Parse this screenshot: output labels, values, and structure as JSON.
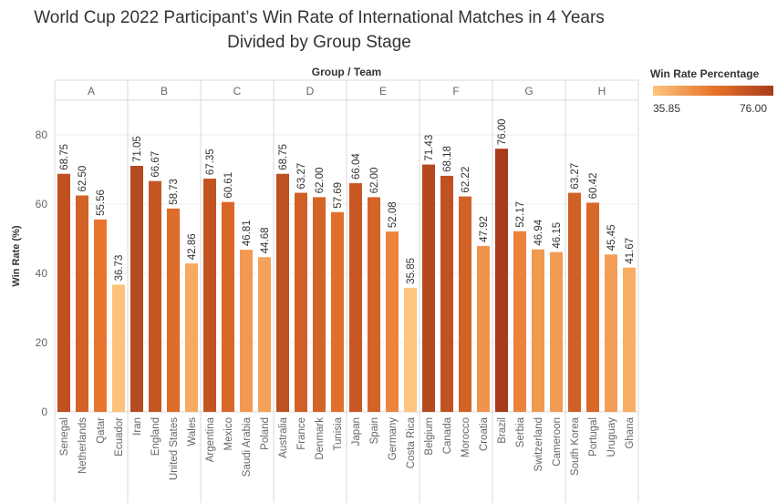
{
  "title": {
    "line1": "World Cup 2022 Participant’s Win Rate of International Matches in 4 Years",
    "line2": "Divided by Group Stage"
  },
  "legend": {
    "title": "Win Rate Percentage",
    "min_label": "35.85",
    "max_label": "76.00",
    "color_low": "#fdc57f",
    "color_mid": "#e8742b",
    "color_high": "#a63c1c"
  },
  "chart_data": {
    "type": "bar",
    "column_header": "Group  /  Team",
    "ylabel": "Win Rate (%)",
    "ylim": [
      0,
      90
    ],
    "yticks": [
      0,
      20,
      40,
      60,
      80
    ],
    "grid": true,
    "color_scale": {
      "min": 35.85,
      "max": 76.0
    },
    "groups": [
      {
        "name": "A",
        "teams": [
          "Senegal",
          "Netherlands",
          "Qatar",
          "Ecuador"
        ],
        "values": [
          68.75,
          62.5,
          55.56,
          36.73
        ]
      },
      {
        "name": "B",
        "teams": [
          "Iran",
          "England",
          "United States",
          "Wales"
        ],
        "values": [
          71.05,
          66.67,
          58.73,
          42.86
        ]
      },
      {
        "name": "C",
        "teams": [
          "Argentina",
          "Mexico",
          "Saudi Arabia",
          "Poland"
        ],
        "values": [
          67.35,
          60.61,
          46.81,
          44.68
        ]
      },
      {
        "name": "D",
        "teams": [
          "Australia",
          "France",
          "Denmark",
          "Tunisia"
        ],
        "values": [
          68.75,
          63.27,
          62.0,
          57.69
        ]
      },
      {
        "name": "E",
        "teams": [
          "Japan",
          "Spain",
          "Germany",
          "Costa Rica"
        ],
        "values": [
          66.04,
          62.0,
          52.08,
          35.85
        ]
      },
      {
        "name": "F",
        "teams": [
          "Belgium",
          "Canada",
          "Morocco",
          "Croatia"
        ],
        "values": [
          71.43,
          68.18,
          62.22,
          47.92
        ]
      },
      {
        "name": "G",
        "teams": [
          "Brazil",
          "Serbia",
          "Switzerland",
          "Cameroon"
        ],
        "values": [
          76.0,
          52.17,
          46.94,
          46.15
        ]
      },
      {
        "name": "H",
        "teams": [
          "South Korea",
          "Portugal",
          "Uruguay",
          "Ghana"
        ],
        "values": [
          63.27,
          60.42,
          45.45,
          41.67
        ]
      }
    ]
  }
}
